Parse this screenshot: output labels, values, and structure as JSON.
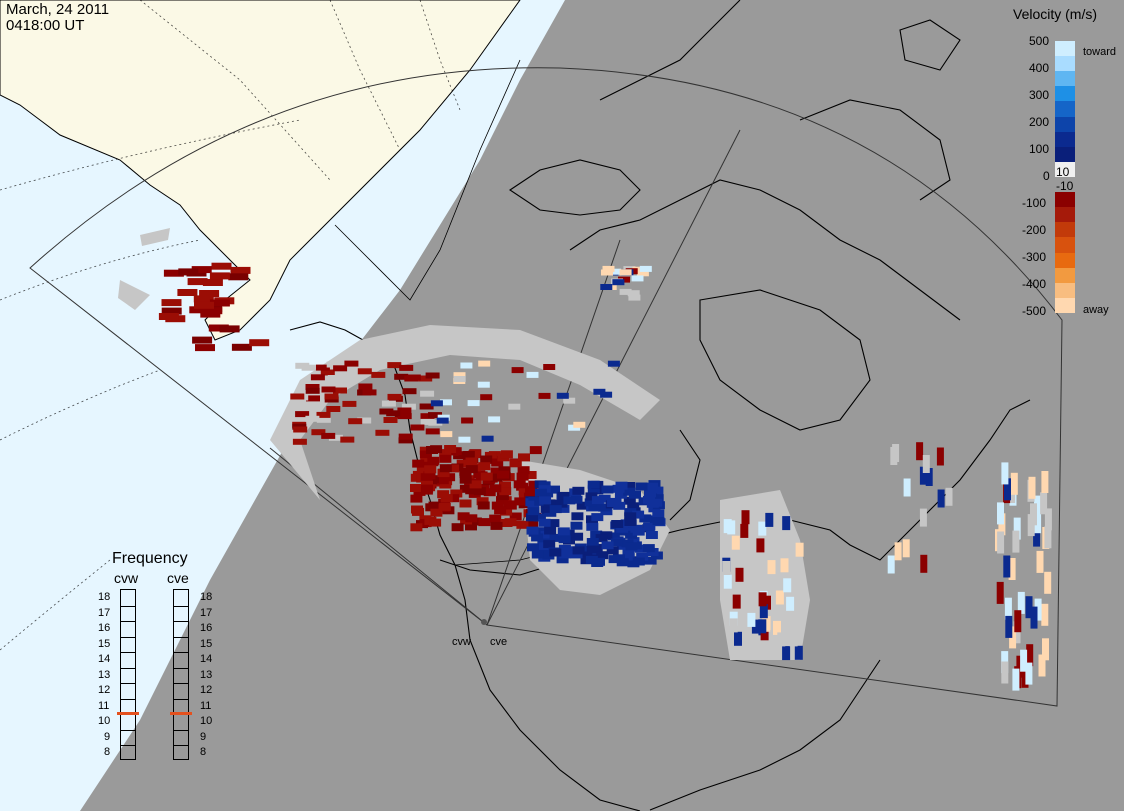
{
  "header": {
    "date": "March, 24 2011",
    "time": "0418:00 UT"
  },
  "velocity_scale": {
    "title": "Velocity (m/s)",
    "toward_label": "toward",
    "away_label": "away",
    "ticks": [
      "500",
      "400",
      "300",
      "200",
      "100",
      "10",
      "0",
      "-10",
      "-100",
      "-200",
      "-300",
      "-400",
      "-500"
    ],
    "colors": {
      "toward_max": "#cfeeff",
      "toward_mid": "#1e90e6",
      "toward_low": "#0b2a8f",
      "near_zero": "#9a9a9a",
      "away_low": "#8b0000",
      "away_mid": "#e86a10",
      "away_max": "#ffd8b0"
    }
  },
  "frequency_panel": {
    "title": "Frequency",
    "radars": [
      {
        "name": "cvw",
        "frequency_mhz": 11
      },
      {
        "name": "cve",
        "frequency_mhz": 11
      }
    ],
    "scale": [
      "18",
      "17",
      "16",
      "15",
      "14",
      "13",
      "12",
      "11",
      "10",
      "9",
      "8"
    ]
  },
  "sites": {
    "west": "cvw",
    "east": "cve"
  },
  "map_colors": {
    "night": "#9a9a9a",
    "day_ocean": "#e6f6ff",
    "day_land": "#fbf9e6",
    "ground_scatter": "#c6c6c6"
  }
}
